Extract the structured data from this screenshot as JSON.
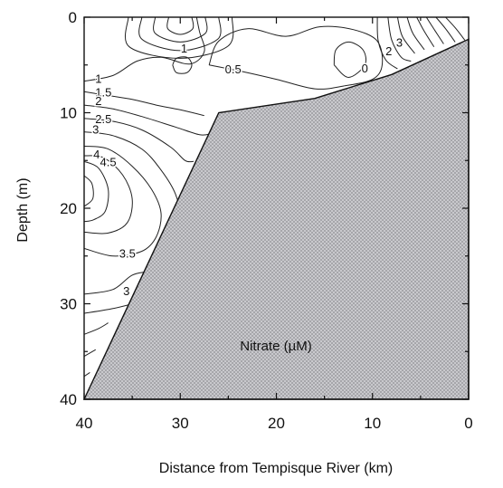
{
  "chart_data": {
    "type": "contour",
    "title": "Nitrate (µM)",
    "xlabel": "Distance from Tempisque River (km)",
    "ylabel": "Depth (m)",
    "xlim": [
      40,
      0
    ],
    "ylim": [
      0,
      40
    ],
    "x_reversed": true,
    "y_reversed": true,
    "x_ticks": [
      40,
      30,
      20,
      10,
      0
    ],
    "y_ticks": [
      0,
      10,
      20,
      30,
      40
    ],
    "bathymetry_boundary": [
      [
        40,
        40
      ],
      [
        26,
        10
      ],
      [
        16,
        8.5
      ],
      [
        8,
        6
      ],
      [
        0,
        2.3
      ],
      [
        0,
        40
      ]
    ],
    "fill_color": "#b8b8bc",
    "contours": [
      {
        "label": "0",
        "points": [
          [
            14,
            5
          ],
          [
            13.8,
            3.4
          ],
          [
            12.5,
            2.6
          ],
          [
            11,
            3.4
          ],
          [
            10.8,
            5
          ],
          [
            12.5,
            6.3
          ],
          [
            14,
            5
          ]
        ],
        "label_at": [
          10.8,
          5.4
        ]
      },
      {
        "label": "0.5",
        "points": [
          [
            27,
            5
          ],
          [
            26,
            2.5
          ],
          [
            23,
            1.2
          ],
          [
            19,
            2
          ],
          [
            15.5,
            1
          ],
          [
            12,
            1.3
          ],
          [
            9.5,
            2.5
          ],
          [
            9,
            5
          ],
          [
            10,
            6.5
          ],
          [
            13,
            7.2
          ],
          [
            16,
            7.5
          ],
          [
            20,
            6.5
          ],
          [
            23.5,
            5.7
          ],
          [
            27,
            5
          ]
        ],
        "label_at": [
          24.5,
          5.5
        ]
      },
      {
        "label": "1",
        "points": [
          [
            40,
            6.7
          ],
          [
            37,
            6.1
          ],
          [
            34.5,
            4.6
          ],
          [
            32,
            4.2
          ],
          [
            29,
            4.9
          ],
          [
            27.5,
            3.6
          ],
          [
            28,
            1.5
          ],
          [
            28.3,
            0
          ]
        ],
        "label_at": [
          38.5,
          6.5
        ]
      },
      {
        "label": "1.5",
        "points": [
          [
            40,
            7.8
          ],
          [
            37.5,
            8.2
          ],
          [
            35,
            8.6
          ],
          [
            32.5,
            9.2
          ],
          [
            30,
            9.7
          ],
          [
            27.5,
            10.3
          ]
        ],
        "label_at": [
          38,
          7.9
        ]
      },
      {
        "label": "2",
        "points": [
          [
            40,
            9.2
          ],
          [
            37,
            9.6
          ],
          [
            34,
            10.4
          ],
          [
            30.5,
            11.5
          ],
          [
            28,
            12.3
          ],
          [
            26.8,
            12.2
          ]
        ],
        "label_at": [
          38.5,
          8.8
        ]
      },
      {
        "label": "2.5",
        "points": [
          [
            40,
            10.6
          ],
          [
            37,
            10.9
          ],
          [
            34,
            11.8
          ],
          [
            31,
            13.6
          ],
          [
            29.5,
            15
          ],
          [
            28.6,
            15.1
          ]
        ],
        "label_at": [
          38,
          10.7
        ]
      },
      {
        "label": "3",
        "points": [
          [
            40,
            12
          ],
          [
            37,
            12.4
          ],
          [
            34,
            13.8
          ],
          [
            32,
            16
          ],
          [
            30.5,
            18.5
          ],
          [
            30,
            21
          ],
          [
            30.5,
            23.5
          ],
          [
            31.5,
            25.5
          ],
          [
            33,
            26.5
          ],
          [
            35,
            27
          ],
          [
            37,
            28.5
          ],
          [
            40,
            29
          ]
        ],
        "label_at": [
          38.8,
          11.8
        ]
      },
      {
        "label": "3.5",
        "points": [
          [
            40,
            13.5
          ],
          [
            37.5,
            13.8
          ],
          [
            35,
            15.6
          ],
          [
            33,
            18
          ],
          [
            32,
            20.5
          ],
          [
            32.5,
            23
          ],
          [
            34,
            24.5
          ],
          [
            37,
            25
          ],
          [
            40,
            24.2
          ]
        ],
        "label_at": [
          35.5,
          24.8
        ]
      },
      {
        "label": "4",
        "points": [
          [
            40,
            14.5
          ],
          [
            38,
            14.7
          ],
          [
            36,
            16.5
          ],
          [
            35,
            19
          ],
          [
            35.5,
            21.5
          ],
          [
            37.5,
            22.6
          ],
          [
            40,
            22.5
          ]
        ],
        "label_at": [
          38.7,
          14.4
        ]
      },
      {
        "label": "4.5",
        "points": [
          [
            40,
            15.1
          ],
          [
            38.5,
            15.8
          ],
          [
            37.5,
            18
          ],
          [
            37.8,
            20.3
          ],
          [
            39,
            21.2
          ],
          [
            40,
            21.4
          ]
        ],
        "label_at": [
          37.5,
          15.2
        ]
      },
      {
        "label": "",
        "points": [
          [
            40,
            16.6
          ],
          [
            39.2,
            17.4
          ],
          [
            39.1,
            19
          ],
          [
            40,
            19.8
          ]
        ],
        "label_at": null
      },
      {
        "label": "3",
        "points": [
          [
            40,
            31
          ],
          [
            37,
            30.5
          ],
          [
            34.5,
            29.8
          ],
          [
            33.5,
            28.8
          ]
        ],
        "label_at": [
          35.6,
          28.7
        ]
      },
      {
        "label": "",
        "points": [
          [
            40,
            33.2
          ],
          [
            38.5,
            32.6
          ],
          [
            37.5,
            32
          ]
        ],
        "label_at": null
      },
      {
        "label": "",
        "points": [
          [
            40,
            35.5
          ],
          [
            38.8,
            34.8
          ]
        ],
        "label_at": null
      },
      {
        "label": "",
        "points": [
          [
            40,
            37.6
          ],
          [
            39.4,
            37.2
          ]
        ],
        "label_at": null
      },
      {
        "label": "",
        "points": [
          [
            31.2,
            0
          ],
          [
            31.3,
            1.2
          ],
          [
            30,
            1.8
          ],
          [
            28.7,
            1.2
          ],
          [
            28.8,
            0
          ]
        ],
        "label_at": null
      },
      {
        "label": "",
        "points": [
          [
            32.6,
            0
          ],
          [
            32.6,
            1.7
          ],
          [
            30,
            2.6
          ],
          [
            27.4,
            1.7
          ],
          [
            27.4,
            0
          ]
        ],
        "label_at": null
      },
      {
        "label": "",
        "points": [
          [
            34,
            0
          ],
          [
            34,
            2.3
          ],
          [
            30,
            3.5
          ],
          [
            26.1,
            2.3
          ],
          [
            26,
            0
          ]
        ],
        "label_at": null
      },
      {
        "label": "",
        "points": [
          [
            35.4,
            0
          ],
          [
            35.3,
            3.1
          ],
          [
            30,
            4.3
          ],
          [
            25,
            3
          ],
          [
            24.6,
            0
          ]
        ],
        "label_at": null
      },
      {
        "label": "1",
        "points": [
          [
            30.8,
            5
          ],
          [
            30.4,
            4.3
          ],
          [
            29.3,
            4.2
          ],
          [
            28.8,
            5
          ],
          [
            29.3,
            5.8
          ],
          [
            30.4,
            5.8
          ],
          [
            30.8,
            5
          ]
        ],
        "label_at": [
          29.6,
          3.3
        ]
      },
      {
        "label": "2",
        "points": [
          [
            9.5,
            0
          ],
          [
            9.4,
            2.5
          ],
          [
            8.6,
            4.5
          ],
          [
            7.4,
            5.4
          ]
        ],
        "label_at": [
          8.3,
          3.6
        ]
      },
      {
        "label": "3",
        "points": [
          [
            8.4,
            0
          ],
          [
            8,
            2.4
          ],
          [
            7,
            4.2
          ],
          [
            6,
            4.6
          ]
        ],
        "label_at": [
          7.2,
          2.7
        ]
      },
      {
        "label": "",
        "points": [
          [
            7.4,
            0
          ],
          [
            6.9,
            2
          ],
          [
            5.6,
            3.8
          ]
        ],
        "label_at": null
      },
      {
        "label": "",
        "points": [
          [
            6.4,
            0
          ],
          [
            5.8,
            1.7
          ],
          [
            4.6,
            3.4
          ]
        ],
        "label_at": null
      },
      {
        "label": "",
        "points": [
          [
            5.4,
            0
          ],
          [
            4.6,
            1.5
          ],
          [
            3.6,
            3.1
          ]
        ],
        "label_at": null
      },
      {
        "label": "",
        "points": [
          [
            4.4,
            0
          ],
          [
            3.5,
            1.4
          ],
          [
            2.6,
            2.8
          ]
        ],
        "label_at": null
      },
      {
        "label": "",
        "points": [
          [
            3.4,
            0
          ],
          [
            2.4,
            1.2
          ],
          [
            1.4,
            2.6
          ]
        ],
        "label_at": null
      },
      {
        "label": "",
        "points": [
          [
            2.4,
            0
          ],
          [
            1.4,
            1.1
          ],
          [
            0.4,
            2.4
          ]
        ],
        "label_at": null
      }
    ]
  }
}
